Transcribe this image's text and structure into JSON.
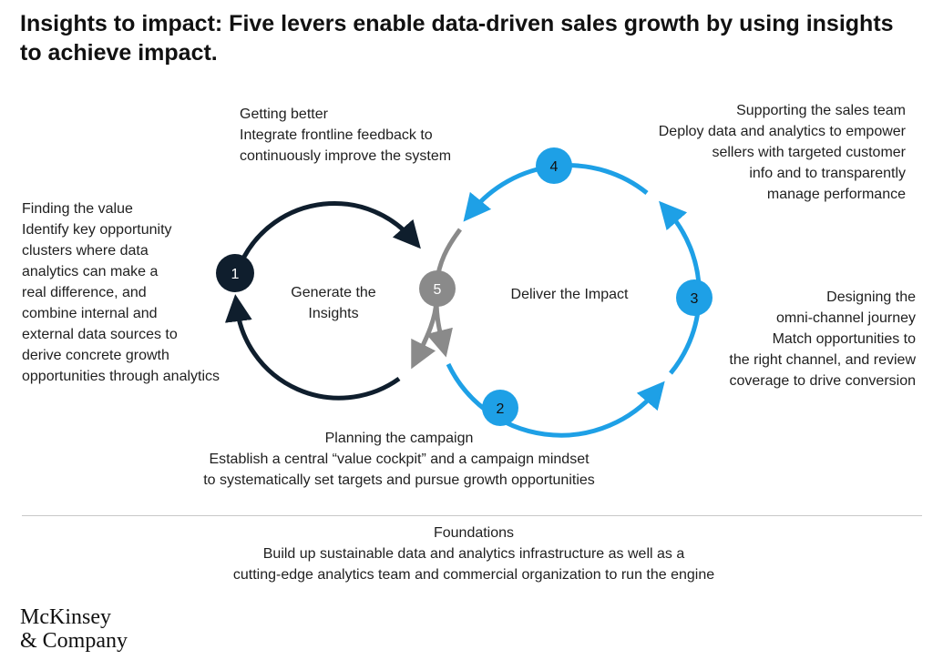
{
  "title": "Insights to impact: Five levers enable data-driven sales growth by using insights to achieve impact.",
  "colors": {
    "dark": "#0f1e2d",
    "blue": "#1ea0e6",
    "gray": "#8a8a8a"
  },
  "cycles": {
    "generate": "Generate the\nInsights",
    "deliver": "Deliver the Impact"
  },
  "levers": [
    {
      "number": "1",
      "heading": "Finding the value",
      "body": "Identify key opportunity\nclusters where data\nanalytics can make a\nreal difference, and\ncombine internal and\nexternal data sources to\nderive concrete growth\nopportunities through analytics"
    },
    {
      "number": "2",
      "heading": "Planning the campaign",
      "body": "Establish a central “value cockpit” and a campaign mindset\nto systematically set targets and pursue growth opportunities"
    },
    {
      "number": "3",
      "heading": "Designing the\nomni-channel journey",
      "body": "Match opportunities to\nthe right channel, and review\ncoverage to drive conversion"
    },
    {
      "number": "4",
      "heading": "Supporting the sales team",
      "body": "Deploy data and analytics to empower\nsellers with targeted customer\ninfo and to transparently\nmanage performance"
    },
    {
      "number": "5",
      "heading": "Getting better",
      "body": "Integrate frontline feedback to\ncontinuously improve the system"
    }
  ],
  "foundations": {
    "heading": "Foundations",
    "body": "Build up sustainable data and analytics infrastructure as well as a\ncutting-edge analytics team and commercial organization to run the engine"
  },
  "logo": {
    "line1": "McKinsey",
    "line2": "& Company"
  }
}
